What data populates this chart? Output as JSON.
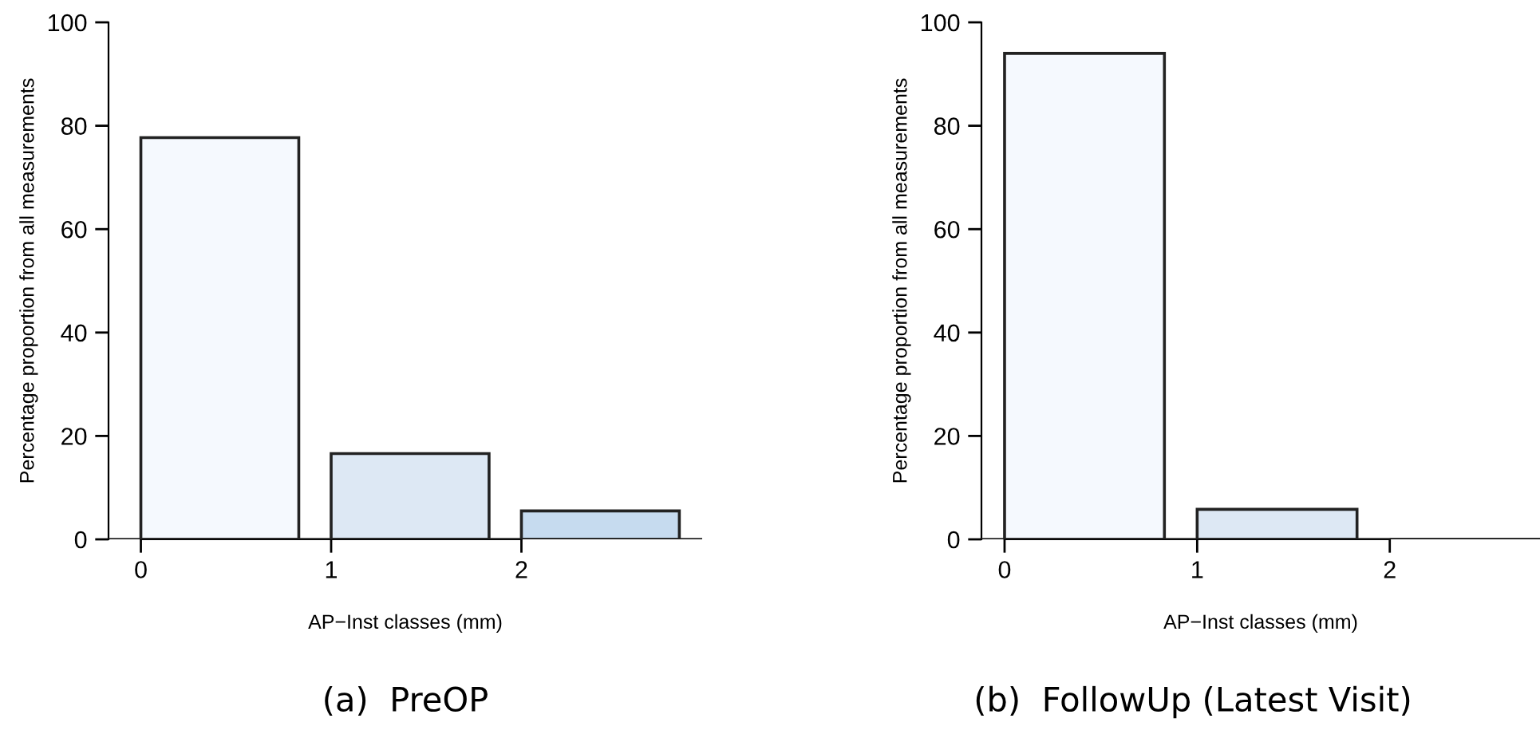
{
  "chart_data": [
    {
      "type": "bar",
      "title": "(a)  PreOP",
      "xlabel": "AP−Inst classes (mm)",
      "ylabel": "Percentage proportion from all measurements",
      "x": [
        0.415,
        1.415,
        2.415
      ],
      "values": [
        77.7,
        16.6,
        5.5
      ],
      "colors": [
        "#f5f9fe",
        "#dde8f4",
        "#c6dbef"
      ],
      "xlim": [
        -0.17,
        2.95
      ],
      "xticks": [
        0,
        1,
        2
      ],
      "ylim": [
        0,
        100
      ],
      "yticks": [
        0,
        20,
        40,
        60,
        80,
        100
      ],
      "grid": false,
      "legend": false
    },
    {
      "type": "bar",
      "title": "(b)  FollowUp (Latest Visit)",
      "xlabel": "AP−Inst classes (mm)",
      "ylabel": "Percentage proportion from all measurements",
      "x": [
        0.415,
        1.415,
        2.415
      ],
      "values": [
        94.0,
        5.8,
        0
      ],
      "colors": [
        "#f5f9fe",
        "#dde8f4",
        "#222222"
      ],
      "xlim": [
        -0.12,
        2.78
      ],
      "xticks": [
        0,
        1,
        2
      ],
      "ylim": [
        0,
        100
      ],
      "yticks": [
        0,
        20,
        40,
        60,
        80,
        100
      ],
      "grid": false,
      "legend": false
    }
  ]
}
